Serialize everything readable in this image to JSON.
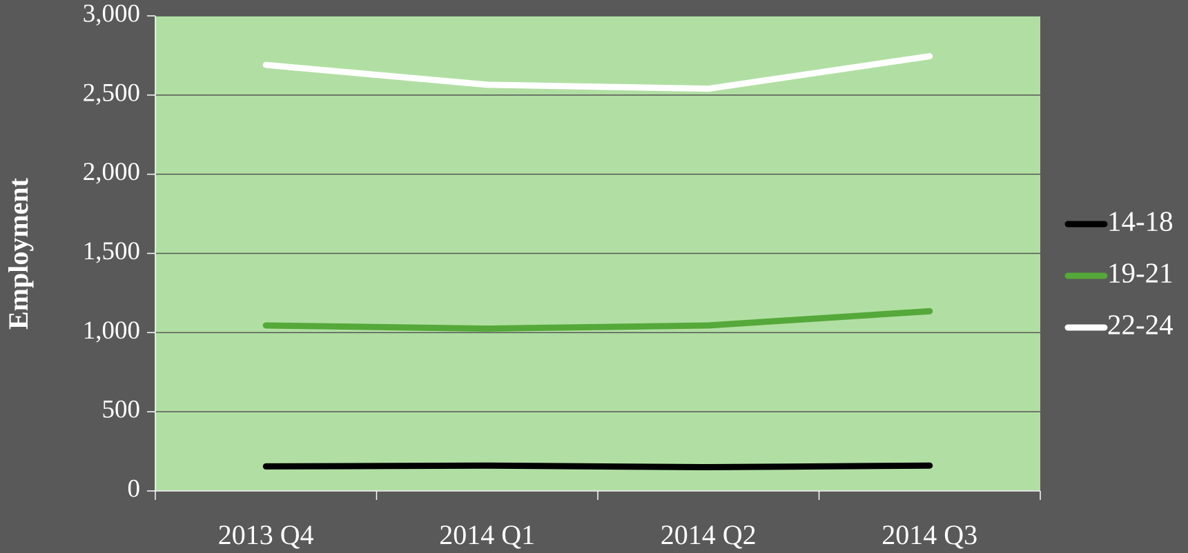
{
  "chart_data": {
    "type": "line",
    "ylabel": "Employment",
    "categories": [
      "2013 Q4",
      "2014 Q1",
      "2014 Q2",
      "2014 Q3"
    ],
    "series": [
      {
        "name": "14-18",
        "color": "#000000",
        "values": [
          155,
          160,
          150,
          160
        ]
      },
      {
        "name": "19-21",
        "color": "#55a83a",
        "values": [
          1045,
          1025,
          1045,
          1135
        ]
      },
      {
        "name": "22-24",
        "color": "#ffffff",
        "values": [
          2690,
          2565,
          2540,
          2745
        ]
      }
    ],
    "ylim": [
      0,
      3000
    ],
    "yticks": [
      0,
      500,
      {
        "value": 1000,
        "label": "1,000"
      },
      {
        "value": 1500,
        "label": "1,500"
      },
      {
        "value": 2000,
        "label": "2,000"
      },
      {
        "value": 2500,
        "label": "2,500"
      },
      {
        "value": 3000,
        "label": "3,000"
      }
    ],
    "grid": true,
    "legend": "right",
    "plot_background": "#b1dfa3"
  }
}
